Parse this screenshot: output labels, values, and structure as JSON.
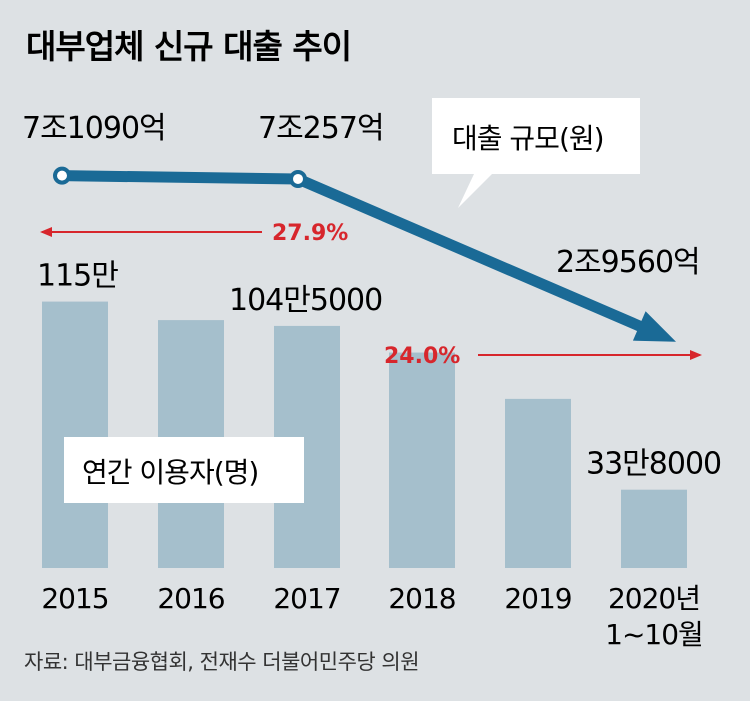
{
  "chart_data": {
    "title": "대부업체 신규 대출 추이",
    "source": "자료: 대부금융협회, 전재수 더불어민주당 의원",
    "categories": [
      "2015",
      "2016",
      "2017",
      "2018",
      "2019",
      "2020년|1~10월"
    ],
    "bars": {
      "name": "연간 이용자(명)",
      "type": "bar",
      "values": [
        1150000,
        1070000,
        1045000,
        930000,
        730000,
        338000
      ],
      "ylim": [
        0,
        1200000
      ],
      "value_labels": {
        "0": "115만",
        "2": "104만5000",
        "5": "33만8000"
      },
      "color": "#a5bfcc"
    },
    "line": {
      "name": "대출 규모(원)",
      "type": "line",
      "x_index": [
        0,
        2,
        5
      ],
      "values": [
        71090,
        70257,
        29560
      ],
      "unit": "억원",
      "value_labels": [
        "7조1090억",
        "7조257억",
        "2조9560억"
      ],
      "color": "#1a6a96"
    },
    "annotations": [
      {
        "text": "27.9%",
        "direction": "left"
      },
      {
        "text": "24.0%",
        "direction": "right"
      }
    ],
    "colors": {
      "arrow": "#d7262c",
      "background": "#dde1e4"
    }
  }
}
